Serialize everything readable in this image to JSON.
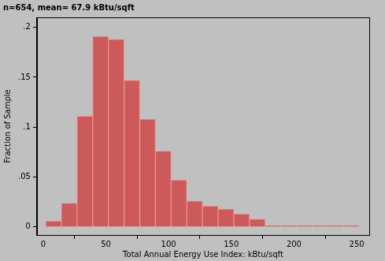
{
  "chart_data": {
    "type": "histogram",
    "title": "n=654, mean= 67.9 kBtu/sqft",
    "x_label": "Total Annual Energy Use Index: kBtu/sqft",
    "y_label": "Fraction of Sample",
    "bins": [
      2,
      14.5,
      27,
      39.5,
      52,
      64.5,
      77,
      89.5,
      102,
      114.5,
      127,
      139.5,
      152,
      164.5,
      177,
      189.5,
      202,
      214.5,
      227,
      239.5,
      252
    ],
    "values": [
      0.006,
      0.024,
      0.111,
      0.191,
      0.188,
      0.147,
      0.108,
      0.076,
      0.047,
      0.026,
      0.021,
      0.018,
      0.013,
      0.008,
      0.0015,
      0.0015,
      0.0015,
      0.0015,
      0.0015,
      0.0015
    ],
    "color": "#cc5a5a",
    "xlim": [
      -5,
      260
    ],
    "xticks": [
      0,
      50,
      100,
      150,
      200,
      250
    ],
    "ylim": [
      -0.008,
      0.21
    ],
    "yticks": [
      0,
      {
        "value": 0.05,
        "label": ".05"
      },
      {
        "value": 0.1,
        "label": ".1"
      },
      {
        "value": 0.15,
        "label": ".15"
      },
      {
        "value": 0.2,
        "label": ".2"
      }
    ],
    "grid": false
  }
}
